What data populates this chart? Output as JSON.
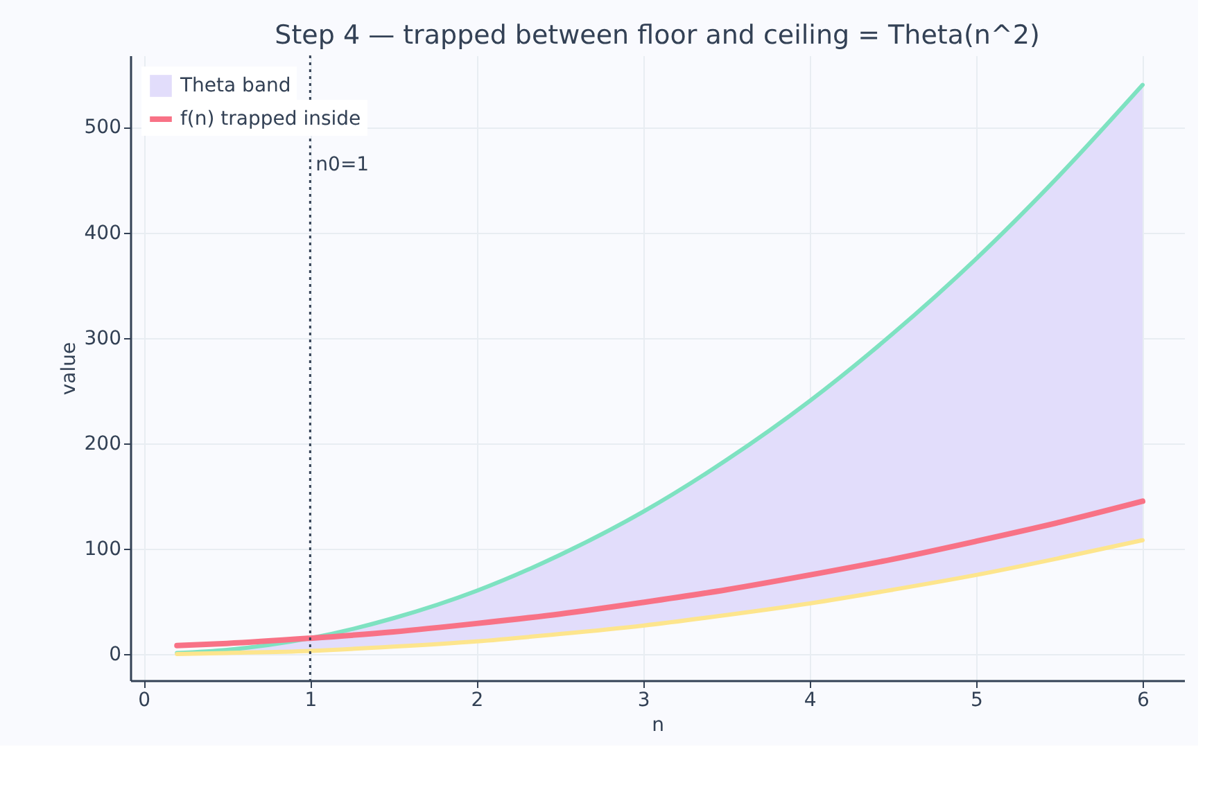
{
  "chart_data": {
    "type": "line",
    "title": "Step 4 — trapped between floor and ceiling = Theta(n^2)",
    "xlabel": "n",
    "ylabel": "value",
    "x": [
      0.2,
      0.5,
      1,
      1.5,
      2,
      2.5,
      3,
      3.5,
      4,
      4.5,
      5,
      5.5,
      6
    ],
    "xlim": [
      -0.08,
      6.25
    ],
    "xticks": [
      0,
      1,
      2,
      3,
      4,
      5,
      6
    ],
    "ylim": [
      -25,
      568
    ],
    "yticks": [
      0,
      100,
      200,
      300,
      400,
      500
    ],
    "series": [
      {
        "name": "Theta band",
        "type": "area",
        "color": "#e2ddfb",
        "values": [
          null,
          null,
          null,
          null,
          null,
          null,
          null,
          null,
          null,
          null,
          null,
          null,
          null
        ],
        "lower": [
          0,
          1,
          3,
          7,
          12,
          19,
          27,
          37,
          48,
          61,
          75,
          91,
          108
        ],
        "upper": [
          1,
          4,
          15,
          34,
          60,
          94,
          135,
          184,
          240,
          304,
          375,
          454,
          540
        ]
      },
      {
        "type": "line",
        "color": "#7ee2c1",
        "values": [
          1,
          4,
          15,
          34,
          60,
          94,
          135,
          184,
          240,
          304,
          375,
          454,
          540
        ]
      },
      {
        "type": "line",
        "color": "#fde58d",
        "values": [
          0,
          1,
          3,
          7,
          12,
          19,
          27,
          37,
          48,
          61,
          75,
          91,
          108
        ]
      },
      {
        "name": "f(n) trapped inside",
        "type": "line",
        "color": "#f87286",
        "values": [
          8,
          10,
          15,
          21,
          29,
          38,
          49,
          61,
          75,
          90,
          107,
          125,
          145
        ]
      }
    ],
    "ref_lines": [
      {
        "axis": "x",
        "value": 1,
        "label": "n0=1",
        "color": "#334155",
        "line_style": "dotted"
      }
    ],
    "grid": true,
    "legend": "top left"
  }
}
